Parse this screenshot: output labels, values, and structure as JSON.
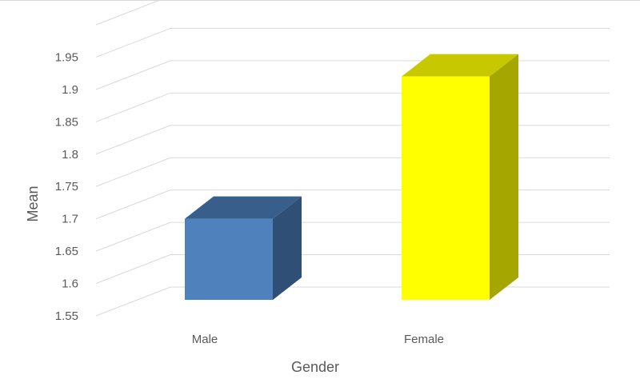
{
  "chart_data": {
    "type": "bar",
    "style": "3d-column",
    "categories": [
      "Male",
      "Female"
    ],
    "values": [
      1.71,
      1.93
    ],
    "colors": [
      "#4f81bd",
      "#ffff00"
    ],
    "side_colors": [
      "#2f4f77",
      "#a6a600"
    ],
    "top_colors": [
      "#385f8c",
      "#c8c800"
    ],
    "ylim": [
      1.55,
      2.0
    ],
    "ystep": 0.05,
    "yticks": [
      "1.55",
      "1.6",
      "1.65",
      "1.7",
      "1.75",
      "1.8",
      "1.85",
      "1.9",
      "1.95"
    ],
    "xlabel": "Gender",
    "ylabel": "Mean",
    "grid": true,
    "legend": "none"
  }
}
